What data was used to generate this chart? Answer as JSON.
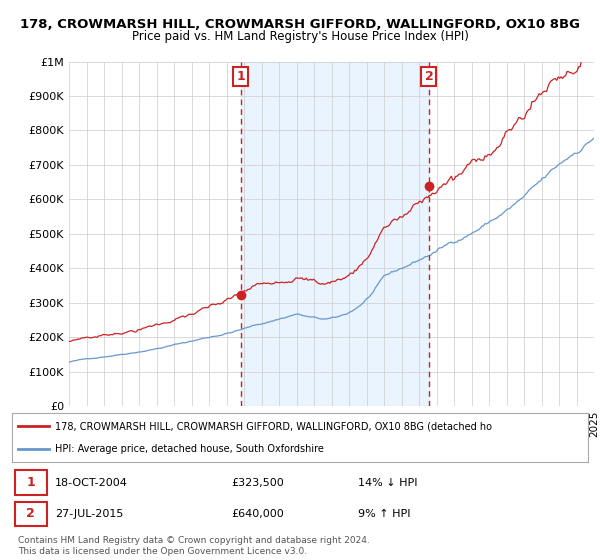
{
  "title": "178, CROWMARSH HILL, CROWMARSH GIFFORD, WALLINGFORD, OX10 8BG",
  "subtitle": "Price paid vs. HM Land Registry's House Price Index (HPI)",
  "xlim": [
    1995,
    2025
  ],
  "ylim": [
    0,
    1000000
  ],
  "yticks": [
    0,
    100000,
    200000,
    300000,
    400000,
    500000,
    600000,
    700000,
    800000,
    900000,
    1000000
  ],
  "ytick_labels": [
    "£0",
    "£100K",
    "£200K",
    "£300K",
    "£400K",
    "£500K",
    "£600K",
    "£700K",
    "£800K",
    "£900K",
    "£1M"
  ],
  "hpi_color": "#6699cc",
  "price_color": "#cc2222",
  "marker1_date": 2004.8,
  "marker1_price": 323500,
  "marker1_label": "18-OCT-2004",
  "marker1_value_label": "£323,500",
  "marker1_hpi_label": "14% ↓ HPI",
  "marker2_date": 2015.57,
  "marker2_price": 640000,
  "marker2_label": "27-JUL-2015",
  "marker2_value_label": "£640,000",
  "marker2_hpi_label": "9% ↑ HPI",
  "legend_line1": "178, CROWMARSH HILL, CROWMARSH GIFFORD, WALLINGFORD, OX10 8BG (detached ho",
  "legend_line2": "HPI: Average price, detached house, South Oxfordshire",
  "footnote": "Contains HM Land Registry data © Crown copyright and database right 2024.\nThis data is licensed under the Open Government Licence v3.0.",
  "background_color": "#ffffff",
  "grid_color": "#cccccc",
  "shaded_region_color": "#ddeeff"
}
